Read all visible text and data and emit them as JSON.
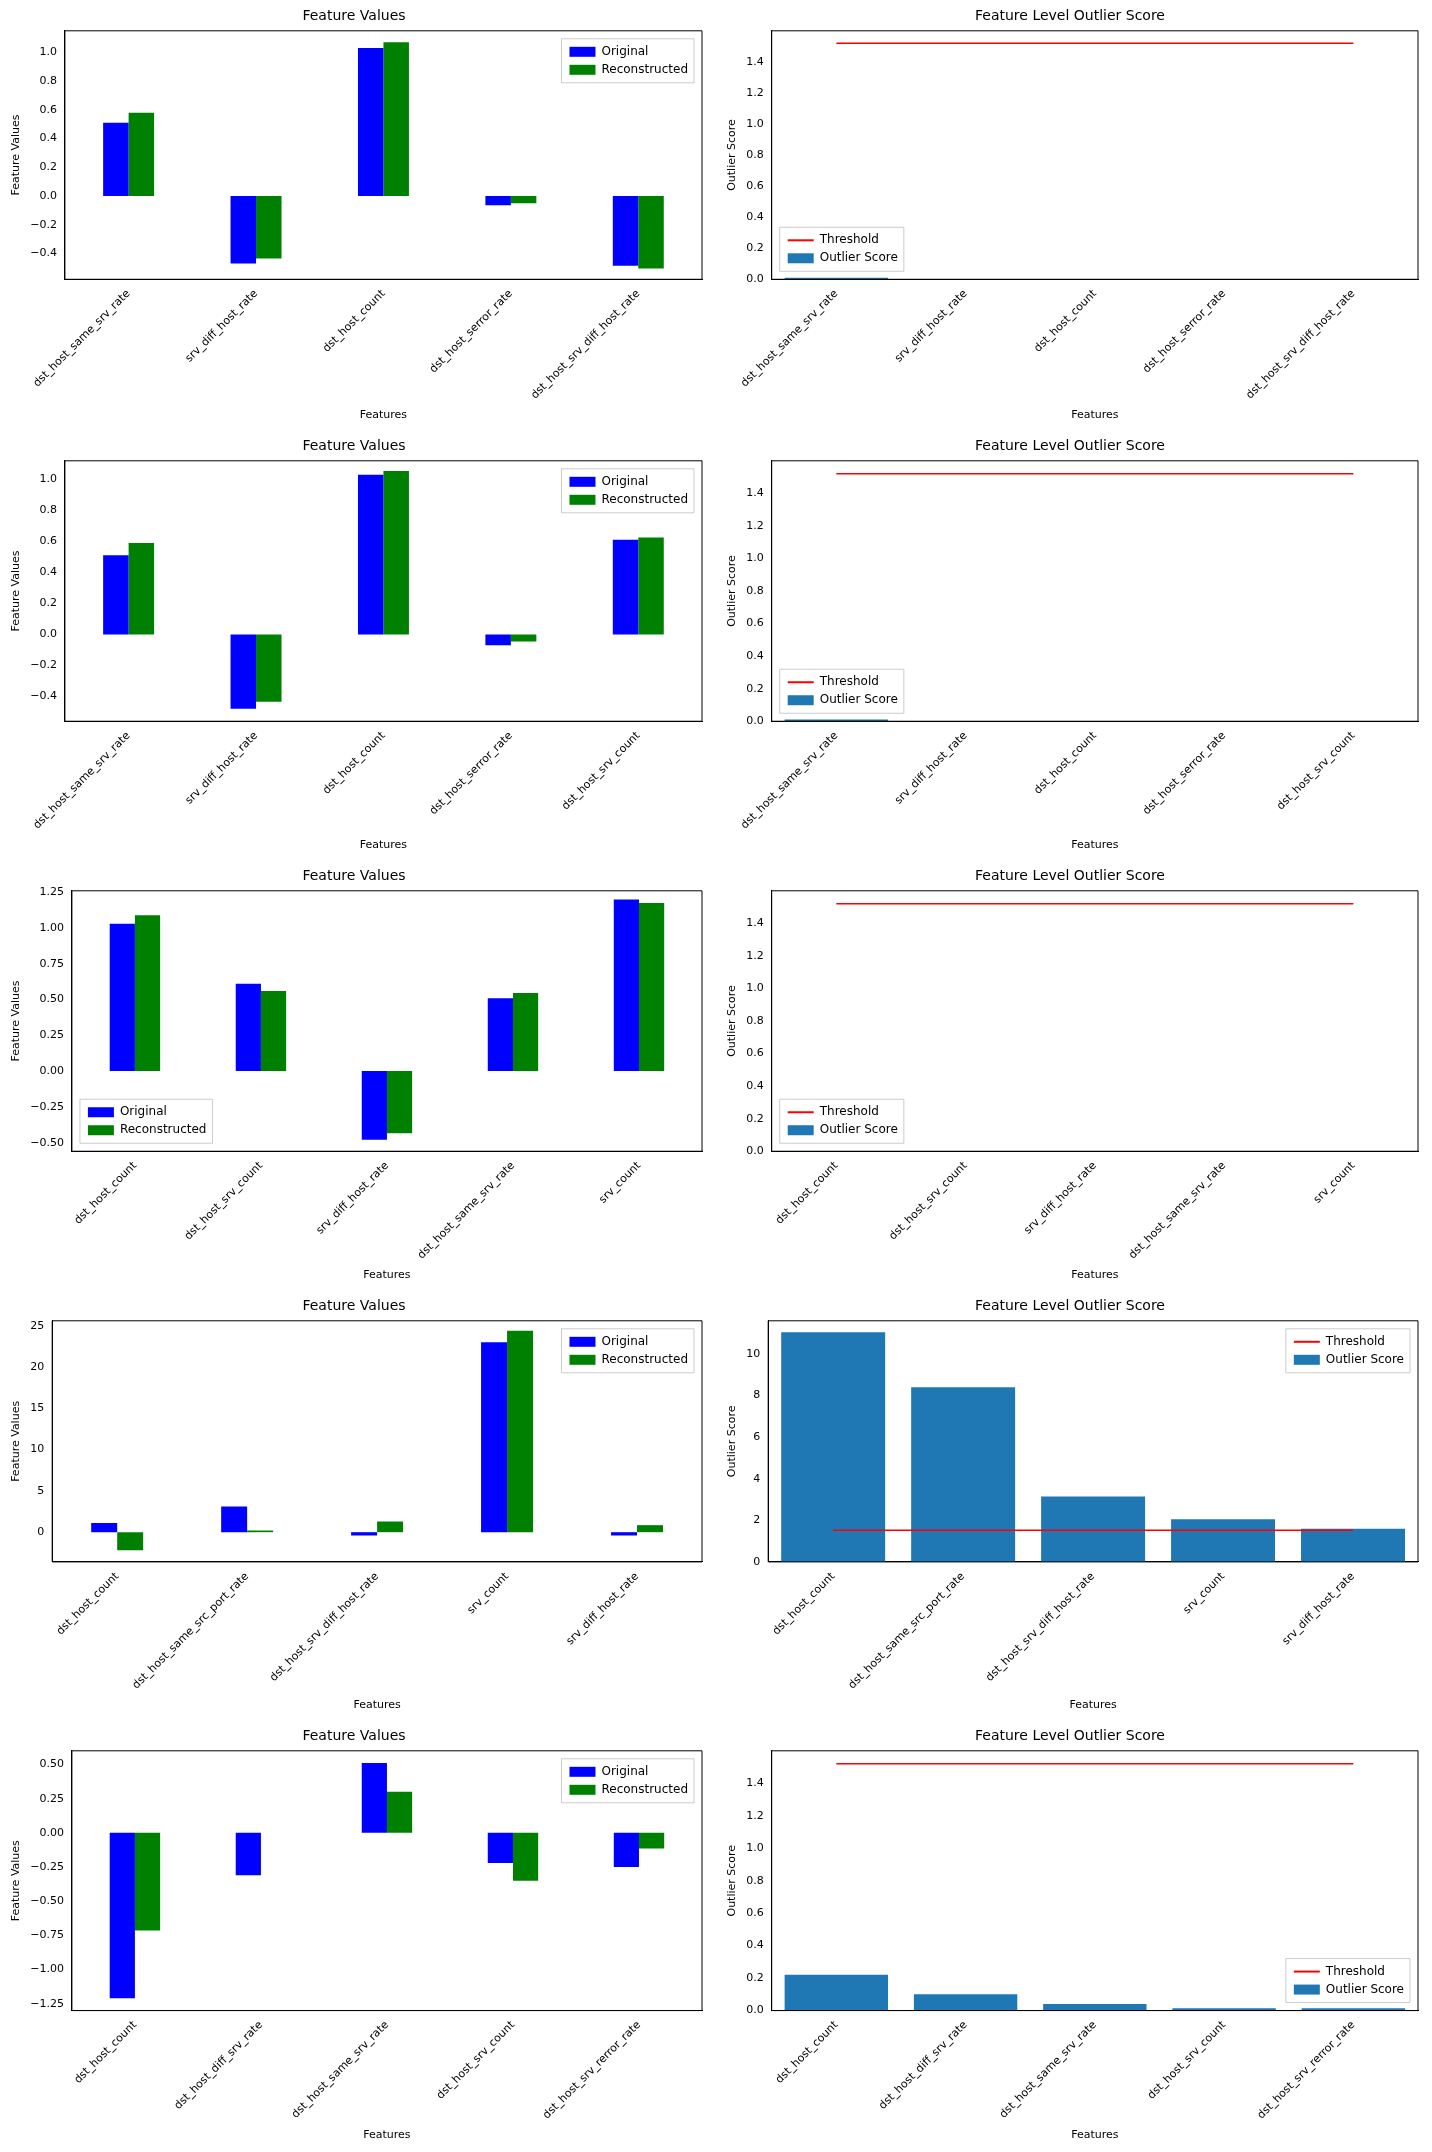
{
  "chart_data": [
    {
      "type": "bar",
      "title": "Feature Values",
      "xlabel": "Features",
      "ylabel": "Feature Values",
      "legend": "top right",
      "categories": [
        "dst_host_same_srv_rate",
        "srv_diff_host_rate",
        "dst_host_count",
        "dst_host_serror_rate",
        "dst_host_srv_diff_host_rate"
      ],
      "ylim": [
        -0.58,
        1.15
      ],
      "yticks": [
        {
          "value": -0.4,
          "label": "−0.4"
        },
        {
          "value": -0.2,
          "label": "−0.2"
        },
        {
          "value": 0,
          "label": "0.0"
        },
        {
          "value": 0.2,
          "label": "0.2"
        },
        {
          "value": 0.4,
          "label": "0.4"
        },
        {
          "value": 0.6,
          "label": "0.6"
        },
        {
          "value": 0.8,
          "label": "0.8"
        },
        {
          "value": 1,
          "label": "1.0"
        }
      ],
      "series": [
        {
          "name": "Original",
          "color": "#0000ff",
          "values": [
            0.51,
            -0.47,
            1.03,
            -0.065,
            -0.485
          ]
        },
        {
          "name": "Reconstructed",
          "color": "#008000",
          "values": [
            0.58,
            -0.435,
            1.07,
            -0.05,
            -0.505
          ]
        }
      ]
    },
    {
      "type": "bar",
      "title": "Feature Level Outlier Score",
      "xlabel": "Features",
      "ylabel": "Outlier Score",
      "legend": "bottom left",
      "categories": [
        "dst_host_same_srv_rate",
        "srv_diff_host_rate",
        "dst_host_count",
        "dst_host_serror_rate",
        "dst_host_srv_diff_host_rate"
      ],
      "ylim": [
        0,
        1.6
      ],
      "yticks": [
        {
          "value": 0,
          "label": "0.0"
        },
        {
          "value": 0.2,
          "label": "0.2"
        },
        {
          "value": 0.4,
          "label": "0.4"
        },
        {
          "value": 0.6,
          "label": "0.6"
        },
        {
          "value": 0.8,
          "label": "0.8"
        },
        {
          "value": 1,
          "label": "1.0"
        },
        {
          "value": 1.2,
          "label": "1.2"
        },
        {
          "value": 1.4,
          "label": "1.4"
        }
      ],
      "marker": "none",
      "series": [
        {
          "name": "Threshold",
          "type": "line",
          "color": "#ff0000",
          "values": [
            1.52,
            1.52,
            1.52,
            1.52,
            1.52
          ]
        },
        {
          "name": "Outlier Score",
          "color": "#1f77b4",
          "values": [
            0.01,
            0,
            0,
            0,
            0
          ]
        }
      ]
    },
    {
      "type": "bar",
      "title": "Feature Values",
      "xlabel": "Features",
      "ylabel": "Feature Values",
      "legend": "top right",
      "categories": [
        "dst_host_same_srv_rate",
        "srv_diff_host_rate",
        "dst_host_count",
        "dst_host_serror_rate",
        "dst_host_srv_count"
      ],
      "ylim": [
        -0.56,
        1.12
      ],
      "yticks": [
        {
          "value": -0.4,
          "label": "−0.4"
        },
        {
          "value": -0.2,
          "label": "−0.2"
        },
        {
          "value": 0,
          "label": "0.0"
        },
        {
          "value": 0.2,
          "label": "0.2"
        },
        {
          "value": 0.4,
          "label": "0.4"
        },
        {
          "value": 0.6,
          "label": "0.6"
        },
        {
          "value": 0.8,
          "label": "0.8"
        },
        {
          "value": 1,
          "label": "1.0"
        }
      ],
      "series": [
        {
          "name": "Original",
          "color": "#0000ff",
          "values": [
            0.51,
            -0.48,
            1.03,
            -0.07,
            0.61
          ]
        },
        {
          "name": "Reconstructed",
          "color": "#008000",
          "values": [
            0.59,
            -0.435,
            1.055,
            -0.045,
            0.625
          ]
        }
      ]
    },
    {
      "type": "bar",
      "title": "Feature Level Outlier Score",
      "xlabel": "Features",
      "ylabel": "Outlier Score",
      "legend": "bottom left",
      "categories": [
        "dst_host_same_srv_rate",
        "srv_diff_host_rate",
        "dst_host_count",
        "dst_host_serror_rate",
        "dst_host_srv_count"
      ],
      "ylim": [
        0,
        1.6
      ],
      "yticks": [
        {
          "value": 0,
          "label": "0.0"
        },
        {
          "value": 0.2,
          "label": "0.2"
        },
        {
          "value": 0.4,
          "label": "0.4"
        },
        {
          "value": 0.6,
          "label": "0.6"
        },
        {
          "value": 0.8,
          "label": "0.8"
        },
        {
          "value": 1,
          "label": "1.0"
        },
        {
          "value": 1.2,
          "label": "1.2"
        },
        {
          "value": 1.4,
          "label": "1.4"
        }
      ],
      "marker": "none",
      "series": [
        {
          "name": "Threshold",
          "type": "line",
          "color": "#ff0000",
          "values": [
            1.52,
            1.52,
            1.52,
            1.52,
            1.52
          ]
        },
        {
          "name": "Outlier Score",
          "color": "#1f77b4",
          "values": [
            0.01,
            0,
            0,
            0,
            0
          ]
        }
      ]
    },
    {
      "type": "bar",
      "title": "Feature Values",
      "xlabel": "Features",
      "ylabel": "Feature Values",
      "legend": "bottom left",
      "categories": [
        "dst_host_count",
        "dst_host_srv_count",
        "srv_diff_host_rate",
        "dst_host_same_srv_rate",
        "srv_count"
      ],
      "ylim": [
        -0.56,
        1.26
      ],
      "yticks": [
        {
          "value": -0.5,
          "label": "−0.50"
        },
        {
          "value": -0.25,
          "label": "−0.25"
        },
        {
          "value": 0,
          "label": "0.00"
        },
        {
          "value": 0.25,
          "label": "0.25"
        },
        {
          "value": 0.5,
          "label": "0.50"
        },
        {
          "value": 0.75,
          "label": "0.75"
        },
        {
          "value": 1,
          "label": "1.00"
        },
        {
          "value": 1.25,
          "label": "1.25"
        }
      ],
      "series": [
        {
          "name": "Original",
          "color": "#0000ff",
          "values": [
            1.03,
            0.61,
            -0.48,
            0.51,
            1.2
          ]
        },
        {
          "name": "Reconstructed",
          "color": "#008000",
          "values": [
            1.09,
            0.56,
            -0.435,
            0.545,
            1.175
          ]
        }
      ]
    },
    {
      "type": "bar",
      "title": "Feature Level Outlier Score",
      "xlabel": "Features",
      "ylabel": "Outlier Score",
      "legend": "bottom left",
      "categories": [
        "dst_host_count",
        "dst_host_srv_count",
        "srv_diff_host_rate",
        "dst_host_same_srv_rate",
        "srv_count"
      ],
      "ylim": [
        0,
        1.6
      ],
      "yticks": [
        {
          "value": 0,
          "label": "0.0"
        },
        {
          "value": 0.2,
          "label": "0.2"
        },
        {
          "value": 0.4,
          "label": "0.4"
        },
        {
          "value": 0.6,
          "label": "0.6"
        },
        {
          "value": 0.8,
          "label": "0.8"
        },
        {
          "value": 1,
          "label": "1.0"
        },
        {
          "value": 1.2,
          "label": "1.2"
        },
        {
          "value": 1.4,
          "label": "1.4"
        }
      ],
      "marker": "none",
      "series": [
        {
          "name": "Threshold",
          "type": "line",
          "color": "#ff0000",
          "values": [
            1.52,
            1.52,
            1.52,
            1.52,
            1.52
          ]
        },
        {
          "name": "Outlier Score",
          "color": "#1f77b4",
          "values": [
            0,
            0,
            0,
            0,
            0
          ]
        }
      ]
    },
    {
      "type": "bar",
      "title": "Feature Values",
      "xlabel": "Features",
      "ylabel": "Feature Values",
      "legend": "top right",
      "categories": [
        "dst_host_count",
        "dst_host_same_src_port_rate",
        "dst_host_srv_diff_host_rate",
        "srv_count",
        "srv_diff_host_rate"
      ],
      "ylim": [
        -3.6,
        25.6
      ],
      "yticks": [
        0,
        5,
        10,
        15,
        20,
        25
      ],
      "series": [
        {
          "name": "Original",
          "color": "#0000ff",
          "values": [
            1.1,
            3.1,
            -0.4,
            23.0,
            -0.4
          ]
        },
        {
          "name": "Reconstructed",
          "color": "#008000",
          "values": [
            -2.2,
            0.2,
            1.3,
            24.4,
            0.85
          ]
        }
      ]
    },
    {
      "type": "bar",
      "title": "Feature Level Outlier Score",
      "xlabel": "Features",
      "ylabel": "Outlier Score",
      "legend": "top right",
      "categories": [
        "dst_host_count",
        "dst_host_same_src_port_rate",
        "dst_host_srv_diff_host_rate",
        "srv_count",
        "srv_diff_host_rate"
      ],
      "ylim": [
        0,
        11.6
      ],
      "yticks": [
        0,
        2,
        4,
        6,
        8,
        10
      ],
      "marker": "none",
      "series": [
        {
          "name": "Threshold",
          "type": "line",
          "color": "#ff0000",
          "values": [
            1.52,
            1.52,
            1.52,
            1.52,
            1.52
          ]
        },
        {
          "name": "Outlier Score",
          "color": "#1f77b4",
          "values": [
            11.05,
            8.4,
            3.15,
            2.05,
            1.6
          ]
        }
      ]
    },
    {
      "type": "bar",
      "title": "Feature Values",
      "xlabel": "Features",
      "ylabel": "Feature Values",
      "legend": "top right",
      "categories": [
        "dst_host_count",
        "dst_host_diff_srv_rate",
        "dst_host_same_srv_rate",
        "dst_host_srv_count",
        "dst_host_srv_rerror_rate"
      ],
      "ylim": [
        -1.3,
        0.6
      ],
      "yticks": [
        {
          "value": -1.25,
          "label": "−1.25"
        },
        {
          "value": -1,
          "label": "−1.00"
        },
        {
          "value": -0.75,
          "label": "−0.75"
        },
        {
          "value": -0.5,
          "label": "−0.50"
        },
        {
          "value": -0.25,
          "label": "−0.25"
        },
        {
          "value": 0,
          "label": "0.00"
        },
        {
          "value": 0.25,
          "label": "0.25"
        },
        {
          "value": 0.5,
          "label": "0.50"
        }
      ],
      "series": [
        {
          "name": "Original",
          "color": "#0000ff",
          "values": [
            -1.21,
            -0.31,
            0.51,
            -0.22,
            -0.25
          ]
        },
        {
          "name": "Reconstructed",
          "color": "#008000",
          "values": [
            -0.715,
            0,
            0.3,
            -0.35,
            -0.115
          ]
        }
      ]
    },
    {
      "type": "bar",
      "title": "Feature Level Outlier Score",
      "xlabel": "Features",
      "ylabel": "Outlier Score",
      "legend": "bottom right",
      "categories": [
        "dst_host_count",
        "dst_host_diff_srv_rate",
        "dst_host_same_srv_rate",
        "dst_host_srv_count",
        "dst_host_srv_rerror_rate"
      ],
      "ylim": [
        0,
        1.6
      ],
      "yticks": [
        {
          "value": 0,
          "label": "0.0"
        },
        {
          "value": 0.2,
          "label": "0.2"
        },
        {
          "value": 0.4,
          "label": "0.4"
        },
        {
          "value": 0.6,
          "label": "0.6"
        },
        {
          "value": 0.8,
          "label": "0.8"
        },
        {
          "value": 1,
          "label": "1.0"
        },
        {
          "value": 1.2,
          "label": "1.2"
        },
        {
          "value": 1.4,
          "label": "1.4"
        }
      ],
      "marker": "none",
      "series": [
        {
          "name": "Threshold",
          "type": "line",
          "color": "#ff0000",
          "values": [
            1.52,
            1.52,
            1.52,
            1.52,
            1.52
          ]
        },
        {
          "name": "Outlier Score",
          "color": "#1f77b4",
          "values": [
            0.22,
            0.1,
            0.04,
            0.015,
            0.015
          ]
        }
      ]
    }
  ]
}
